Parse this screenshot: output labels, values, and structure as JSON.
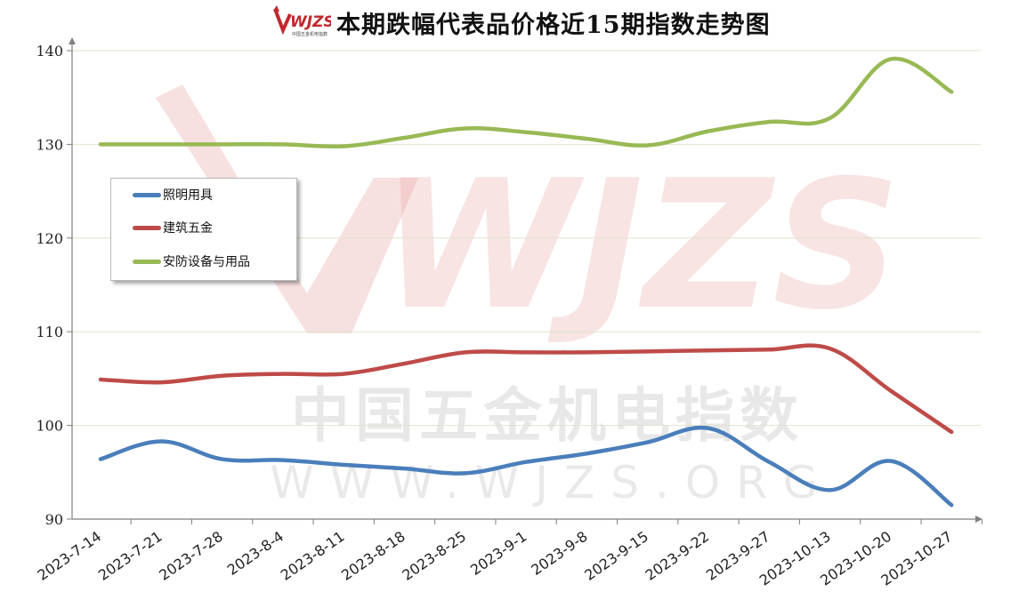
{
  "title": "本期跌幅代表品价格近15期指数走势图",
  "logo": {
    "text": "WJZS",
    "subtext": "中国五金机电指数",
    "color": "#c0282d"
  },
  "watermark": {
    "logo": "WJZS",
    "line1": "中国五金机电指数",
    "line2": "WWW.WJZS.ORG",
    "color": "#e8a7a5"
  },
  "legend": [
    {
      "name": "照明用具",
      "color": "#4a7ebb"
    },
    {
      "name": "建筑五金",
      "color": "#be4b48"
    },
    {
      "name": "安防设备与用品",
      "color": "#98b954"
    }
  ],
  "chart_data": {
    "type": "line",
    "title": "本期跌幅代表品价格近15期指数走势图",
    "xlabel": "",
    "ylabel": "",
    "categories": [
      "2023-7-14",
      "2023-7-21",
      "2023-7-28",
      "2023-8-4",
      "2023-8-11",
      "2023-8-18",
      "2023-8-25",
      "2023-9-1",
      "2023-9-8",
      "2023-9-15",
      "2023-9-22",
      "2023-9-27",
      "2023-10-13",
      "2023-10-20",
      "2023-10-27"
    ],
    "ylim": [
      90,
      140
    ],
    "yticks": [
      90,
      100,
      110,
      120,
      130,
      140
    ],
    "grid": true,
    "legend_position": "top-left",
    "smooth": true,
    "series": [
      {
        "name": "照明用具",
        "color": "#4a7ebb",
        "values": [
          96.4,
          98.3,
          96.4,
          96.3,
          95.8,
          95.4,
          94.9,
          96.1,
          97.0,
          98.2,
          99.7,
          96.1,
          93.1,
          96.2,
          91.5
        ]
      },
      {
        "name": "建筑五金",
        "color": "#be4b48",
        "values": [
          104.9,
          104.6,
          105.3,
          105.5,
          105.5,
          106.6,
          107.8,
          107.8,
          107.8,
          107.9,
          108.0,
          108.1,
          108.2,
          103.7,
          99.3
        ]
      },
      {
        "name": "安防设备与用品",
        "color": "#98b954",
        "values": [
          130.0,
          130.0,
          130.0,
          130.0,
          129.8,
          130.7,
          131.7,
          131.3,
          130.6,
          129.9,
          131.4,
          132.4,
          132.8,
          139.1,
          135.6
        ]
      }
    ]
  }
}
